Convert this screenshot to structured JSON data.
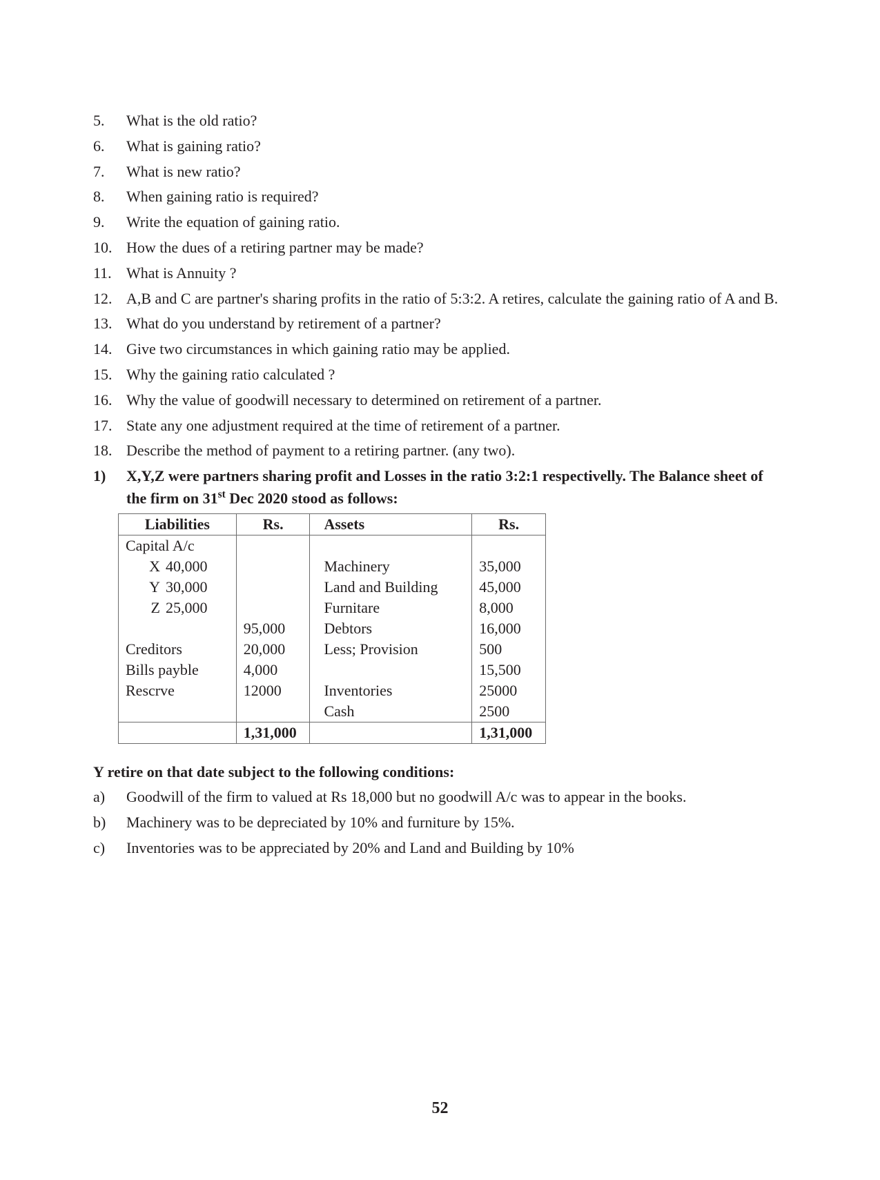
{
  "questions": [
    {
      "n": "5.",
      "t": "What is the old ratio?"
    },
    {
      "n": "6.",
      "t": "What  is gaining ratio?"
    },
    {
      "n": "7.",
      "t": "What is new ratio?"
    },
    {
      "n": "8.",
      "t": "When gaining ratio is required?"
    },
    {
      "n": "9.",
      "t": " Write the equation of gaining ratio."
    },
    {
      "n": "10.",
      "t": "How the dues of a retiring partner may be made?"
    },
    {
      "n": "11.",
      "t": "What is Annuity ?"
    },
    {
      "n": "12.",
      "t": "A,B and C are partner's sharing profits in the ratio of 5:3:2. A retires, calculate the gaining ratio of A and B."
    },
    {
      "n": "13.",
      "t": "What do you understand by retirement of a partner?"
    },
    {
      "n": "14.",
      "t": "Give two circumstances in which gaining ratio may be applied."
    },
    {
      "n": "15.",
      "t": "Why the gaining ratio calculated ?"
    },
    {
      "n": "16.",
      "t": "Why the value of goodwill necessary to determined on retirement of a partner."
    },
    {
      "n": "17.",
      "t": "State any one adjustment required at the time of retirement of a partner."
    },
    {
      "n": "18.",
      "t": "Describe the method of payment to a retiring partner. (any two)."
    }
  ],
  "problem": {
    "n": "1)",
    "intro_pre": "X,Y,Z were partners sharing profit and Losses in the ratio  3:2:1 respectivelly. The Balance sheet of the firm on 31",
    "intro_sup": "st",
    "intro_post": " Dec 2020 stood as follows:"
  },
  "balance": {
    "headers": {
      "liab": "Liabilities",
      "rs1": "Rs.",
      "asset": "Assets",
      "rs2": "Rs."
    },
    "rows": [
      {
        "liab_plain": "Capital A/c",
        "cap_l": "",
        "cap_v": "",
        "rs1": "",
        "asset": "",
        "rs2": ""
      },
      {
        "liab_plain": "",
        "cap_l": "X",
        "cap_v": "40,000",
        "rs1": "",
        "asset": "Machinery",
        "rs2": "35,000"
      },
      {
        "liab_plain": "",
        "cap_l": "Y",
        "cap_v": "30,000",
        "rs1": "",
        "asset": "Land and Building",
        "rs2": "45,000"
      },
      {
        "liab_plain": "",
        "cap_l": "Z",
        "cap_v": "25,000",
        "rs1": "",
        "asset": "Furnitare",
        "rs2": "8,000"
      },
      {
        "liab_plain": "",
        "cap_l": "",
        "cap_v": "",
        "rs1": "95,000",
        "asset": "Debtors",
        "rs2": "16,000"
      },
      {
        "liab_plain": "Creditors",
        "cap_l": "",
        "cap_v": "",
        "rs1": "20,000",
        "asset": "Less; Provision",
        "rs2": "500"
      },
      {
        "liab_plain": "Bills payble",
        "cap_l": "",
        "cap_v": "",
        "rs1": "4,000",
        "asset": "",
        "rs2": "15,500"
      },
      {
        "liab_plain": "Rescrve",
        "cap_l": "",
        "cap_v": "",
        "rs1": "12000",
        "asset": "Inventories",
        "rs2": "25000"
      },
      {
        "liab_plain": "",
        "cap_l": "",
        "cap_v": "",
        "rs1": "",
        "asset": "Cash",
        "rs2": "2500"
      }
    ],
    "total": {
      "rs1": "1,31,000",
      "rs2": "1,31,000"
    }
  },
  "conditions_heading": "Y retire on that date subject to the following conditions:",
  "conditions": [
    {
      "n": "a)",
      "t": "Goodwill of the firm to valued at Rs 18,000 but no goodwill A/c was to appear in the books."
    },
    {
      "n": "b)",
      "t": " Machinery was to be depreciated by 10% and furniture by 15%."
    },
    {
      "n": "c)",
      "t": "Inventories was to be appreciated by 20% and Land and Building by 10%"
    }
  ],
  "page_number": "52"
}
